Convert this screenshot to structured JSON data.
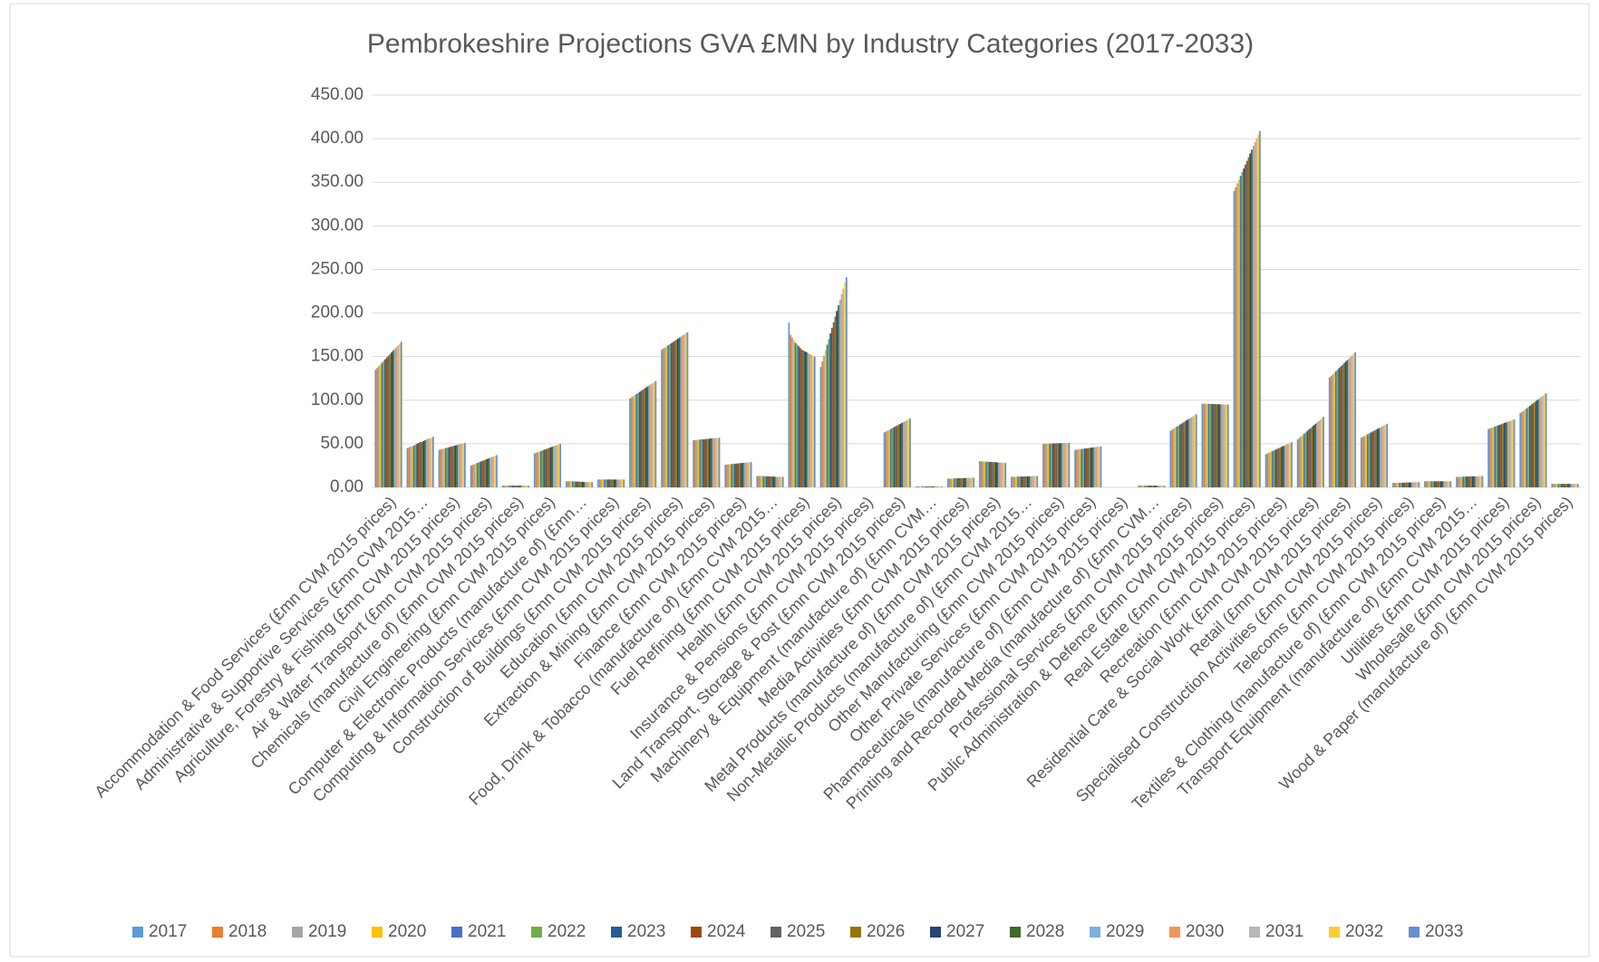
{
  "chart_data": {
    "type": "bar",
    "title": "Pembrokeshire Projections GVA £MN by Industry Categories (2017-2033)",
    "categories": [
      "Accommodation & Food Services (£mn CVM 2015 prices)",
      "Administrative & Supportive Services (£mn CVM 2015…",
      "Agriculture, Forestry & Fishing (£mn CVM 2015 prices)",
      "Air & Water Transport (£mn CVM 2015 prices)",
      "Chemicals (manufacture of) (£mn CVM 2015 prices)",
      "Civil Engineering (£mn CVM 2015 prices)",
      "Computer & Electronic Products (manufacture of) (£mn…",
      "Computing & Information Services (£mn CVM 2015 prices)",
      "Construction of Buildings (£mn CVM 2015 prices)",
      "Education (£mn CVM 2015 prices)",
      "Extraction & Mining (£mn CVM 2015 prices)",
      "Finance (£mn CVM 2015 prices)",
      "Food, Drink & Tobacco (manufacture of) (£mn CVM 2015…",
      "Fuel Refining (£mn CVM 2015 prices)",
      "Health (£mn CVM 2015 prices)",
      "Insurance & Pensions (£mn CVM 2015 prices)",
      "Land Transport, Storage & Post (£mn CVM 2015 prices)",
      "Machinery & Equipment (manufacture of) (£mn CVM…",
      "Media Activities (£mn CVM 2015 prices)",
      "Metal Products (manufacture of) (£mn CVM 2015 prices)",
      "Non-Metallic Products (manufacture of) (£mn CVM 2015…",
      "Other Manufacturing (£mn CVM 2015 prices)",
      "Other Private Services (£mn CVM 2015 prices)",
      "Pharmaceuticals (manufacture of) (£mn CVM 2015 prices)",
      "Printing and Recorded Media (manufacture of) (£mn CVM…",
      "Professional Services (£mn CVM 2015 prices)",
      "Public Administration & Defence (£mn CVM 2015 prices)",
      "Real Estate (£mn CVM 2015 prices)",
      "Recreation (£mn CVM 2015 prices)",
      "Residential Care & Social Work (£mn CVM 2015 prices)",
      "Retail (£mn CVM 2015 prices)",
      "Specialised Construction Activities (£mn CVM 2015 prices)",
      "Telecoms (£mn CVM 2015 prices)",
      "Textiles & Clothing (manufacture of) (£mn CVM 2015 prices)",
      "Transport Equipment (manufacture of) (£mn CVM 2015…",
      "Utilities (£mn CVM 2015 prices)",
      "Wholesale (£mn CVM 2015 prices)",
      "Wood & Paper (manufacture of) (£mn CVM 2015 prices)"
    ],
    "series": [
      {
        "name": "2017",
        "color": "#5b9bd5",
        "values": [
          135,
          45,
          43,
          25,
          2,
          39,
          7,
          9,
          102,
          158,
          54,
          26,
          13,
          189,
          138,
          0,
          63,
          1,
          10,
          30,
          12,
          50,
          43,
          0,
          2,
          65,
          96,
          340,
          38,
          55,
          126,
          57,
          5,
          7,
          12,
          67,
          85,
          4
        ]
      },
      {
        "name": "2018",
        "color": "#ed7d31",
        "values": [
          137,
          46,
          43.5,
          25.8,
          2,
          39.7,
          7,
          9,
          103.3,
          159.3,
          54.2,
          26.2,
          13,
          175,
          144.4,
          0,
          64,
          1,
          10,
          29.9,
          12.1,
          50.1,
          43.3,
          0,
          2,
          66.2,
          95.9,
          344.3,
          38.9,
          56.6,
          127.8,
          58,
          5.1,
          7,
          12.1,
          67.7,
          86.4,
          4
        ]
      },
      {
        "name": "2019",
        "color": "#a5a5a5",
        "values": [
          139,
          47,
          44,
          26.5,
          2,
          40.4,
          7,
          9,
          104.5,
          160.5,
          54.4,
          26.4,
          13,
          172,
          150.9,
          0,
          65,
          1,
          10,
          29.8,
          12.1,
          50.1,
          43.5,
          0,
          2,
          67.4,
          95.9,
          348.6,
          39.8,
          58.3,
          129.6,
          59,
          5.1,
          7,
          12.1,
          68.4,
          87.9,
          4
        ]
      },
      {
        "name": "2020",
        "color": "#ffc000",
        "values": [
          141,
          47,
          44.5,
          27.3,
          2,
          41.1,
          7,
          9,
          105.8,
          161.8,
          54.6,
          26.6,
          13,
          169,
          157.3,
          0,
          66,
          1,
          10,
          29.6,
          12.2,
          50.2,
          43.8,
          0,
          2,
          68.6,
          95.8,
          352.9,
          40.6,
          59.9,
          131.4,
          60,
          5.2,
          7,
          12.2,
          69.1,
          89.3,
          4
        ]
      },
      {
        "name": "2021",
        "color": "#4472c4",
        "values": [
          143,
          48,
          45,
          28,
          2,
          41.8,
          7,
          9,
          107,
          163,
          54.8,
          26.8,
          13,
          166,
          163.8,
          0,
          67,
          1,
          10.3,
          29.5,
          12.3,
          50.3,
          44,
          0,
          2,
          69.8,
          95.8,
          357.3,
          41.5,
          61.5,
          133.3,
          61,
          5.3,
          7,
          12.3,
          69.8,
          90.8,
          4
        ]
      },
      {
        "name": "2022",
        "color": "#70ad47",
        "values": [
          145,
          49,
          45.5,
          28.8,
          2,
          42.4,
          6.8,
          9,
          108.3,
          164.3,
          54.9,
          26.9,
          12.8,
          164,
          170.2,
          0,
          68,
          1,
          10.3,
          29.4,
          12.3,
          50.3,
          44.3,
          0,
          2,
          70.9,
          95.7,
          361.6,
          42.4,
          63.1,
          135.1,
          62,
          5.3,
          7,
          12.3,
          70.4,
          92.2,
          4
        ]
      },
      {
        "name": "2023",
        "color": "#255e91",
        "values": [
          147,
          50,
          46,
          29.5,
          2,
          43.1,
          6.7,
          9,
          109.5,
          165.5,
          55.1,
          27.1,
          12.7,
          162,
          176.6,
          0,
          69,
          1,
          10.4,
          29.3,
          12.4,
          50.4,
          44.5,
          0,
          2,
          72.1,
          95.6,
          365.9,
          43.3,
          64.8,
          136.9,
          63,
          5.4,
          7,
          12.4,
          71.1,
          93.6,
          4
        ]
      },
      {
        "name": "2024",
        "color": "#9e480e",
        "values": [
          149,
          51,
          46.5,
          30.3,
          2,
          43.8,
          6.6,
          9,
          110.8,
          166.8,
          55.3,
          27.3,
          12.6,
          160,
          183.1,
          0,
          70,
          1,
          10.5,
          29.1,
          12.4,
          50.4,
          44.8,
          0,
          2,
          73.3,
          95.6,
          370.2,
          44.1,
          66.4,
          138.7,
          64,
          5.4,
          7,
          12.4,
          71.8,
          95.1,
          4
        ]
      },
      {
        "name": "2025",
        "color": "#636363",
        "values": [
          151,
          52,
          47,
          31,
          2,
          44.5,
          6.5,
          9,
          112,
          168,
          55.5,
          27.5,
          12.5,
          158,
          189.5,
          0,
          71,
          1,
          10.5,
          29,
          12.5,
          50.5,
          45,
          0,
          2,
          74.5,
          95.5,
          374.5,
          45,
          68,
          140.5,
          65,
          5.5,
          7,
          12.5,
          72.5,
          96.5,
          4
        ]
      },
      {
        "name": "2026",
        "color": "#997300",
        "values": [
          153,
          52,
          47.5,
          31.8,
          2,
          45.2,
          6.4,
          9,
          113.3,
          169.3,
          55.7,
          27.7,
          12.4,
          157,
          195.9,
          0,
          72,
          1,
          10.6,
          28.9,
          12.6,
          50.6,
          45.3,
          0,
          2,
          75.7,
          95.4,
          378.8,
          45.9,
          69.6,
          142.3,
          66,
          5.6,
          7,
          12.6,
          73.2,
          97.9,
          4
        ]
      },
      {
        "name": "2027",
        "color": "#264478",
        "values": [
          155,
          53,
          48,
          32.5,
          2,
          45.9,
          6.3,
          9,
          114.5,
          170.5,
          55.9,
          27.9,
          12.3,
          156,
          202.4,
          0,
          73,
          1,
          10.6,
          28.8,
          12.6,
          50.6,
          45.5,
          0,
          2,
          76.9,
          95.4,
          383.1,
          46.8,
          71.3,
          144.1,
          67,
          5.6,
          7,
          12.6,
          73.9,
          99.4,
          4
        ]
      },
      {
        "name": "2028",
        "color": "#43682b",
        "values": [
          157,
          54,
          48.5,
          33.3,
          2,
          46.6,
          6.2,
          9,
          115.8,
          171.8,
          56.1,
          28.1,
          12.2,
          155,
          208.8,
          0,
          74,
          1,
          10.7,
          28.6,
          12.7,
          50.7,
          45.8,
          0,
          2,
          78.1,
          95.3,
          387.4,
          47.6,
          72.9,
          145.9,
          68,
          5.7,
          7,
          12.7,
          74.6,
          100.8,
          4
        ]
      },
      {
        "name": "2029",
        "color": "#7cafdd",
        "values": [
          159,
          55,
          49,
          34,
          2,
          47.3,
          6.1,
          9,
          117,
          173,
          56.3,
          28.3,
          12.1,
          154,
          215.3,
          0,
          75,
          1,
          10.8,
          28.5,
          12.8,
          50.8,
          46,
          0,
          2,
          79.3,
          95.3,
          391.8,
          48.5,
          74.5,
          147.8,
          69,
          5.8,
          7,
          12.8,
          75.3,
          102.3,
          4
        ]
      },
      {
        "name": "2030",
        "color": "#f1975a",
        "values": [
          161,
          56,
          49.5,
          34.8,
          2,
          47.9,
          6,
          9,
          118.3,
          174.3,
          56.4,
          28.4,
          12,
          153,
          221.7,
          0,
          76,
          1,
          10.8,
          28.4,
          12.8,
          50.8,
          46.3,
          0,
          2,
          80.4,
          95.2,
          396.1,
          49.4,
          76.1,
          149.6,
          70,
          5.8,
          7,
          12.8,
          75.9,
          103.7,
          4
        ]
      },
      {
        "name": "2031",
        "color": "#b7b7b7",
        "values": [
          163,
          56,
          50,
          35.5,
          2,
          48.6,
          6,
          9,
          119.5,
          175.5,
          56.6,
          28.6,
          12,
          152,
          228.1,
          0,
          77,
          1,
          10.9,
          28.3,
          12.9,
          50.9,
          46.5,
          0,
          2,
          81.6,
          95.1,
          400.4,
          50.3,
          77.8,
          151.4,
          71,
          5.9,
          7,
          12.9,
          76.6,
          105.1,
          4
        ]
      },
      {
        "name": "2032",
        "color": "#ffcd33",
        "values": [
          165,
          57,
          50.5,
          36.3,
          2,
          49.3,
          6,
          9,
          120.8,
          176.8,
          56.8,
          28.8,
          12,
          151,
          234.6,
          0,
          78,
          1,
          11,
          28.1,
          12.9,
          50.9,
          46.8,
          0,
          2,
          82.8,
          95.1,
          404.7,
          51.1,
          79.4,
          153.2,
          72,
          5.9,
          7,
          12.9,
          77.3,
          106.6,
          4
        ]
      },
      {
        "name": "2033",
        "color": "#698ed0",
        "values": [
          167,
          58,
          51,
          37,
          2,
          50,
          6,
          9,
          122,
          178,
          57,
          29,
          12,
          150,
          241,
          0,
          79,
          1,
          11,
          28,
          13,
          51,
          47,
          0,
          2,
          84,
          95,
          409,
          52,
          81,
          155,
          73,
          6,
          7,
          13,
          78,
          108,
          4
        ]
      }
    ],
    "ylim": [
      0,
      450
    ],
    "yticks": [
      {
        "value": 0,
        "label": "0.00"
      },
      {
        "value": 50,
        "label": "50.00"
      },
      {
        "value": 100,
        "label": "100.00"
      },
      {
        "value": 150,
        "label": "150.00"
      },
      {
        "value": 200,
        "label": "200.00"
      },
      {
        "value": 250,
        "label": "250.00"
      },
      {
        "value": 300,
        "label": "300.00"
      },
      {
        "value": 350,
        "label": "350.00"
      },
      {
        "value": 400,
        "label": "400.00"
      },
      {
        "value": 450,
        "label": "450.00"
      }
    ],
    "grid": true,
    "legend": "bottom"
  }
}
